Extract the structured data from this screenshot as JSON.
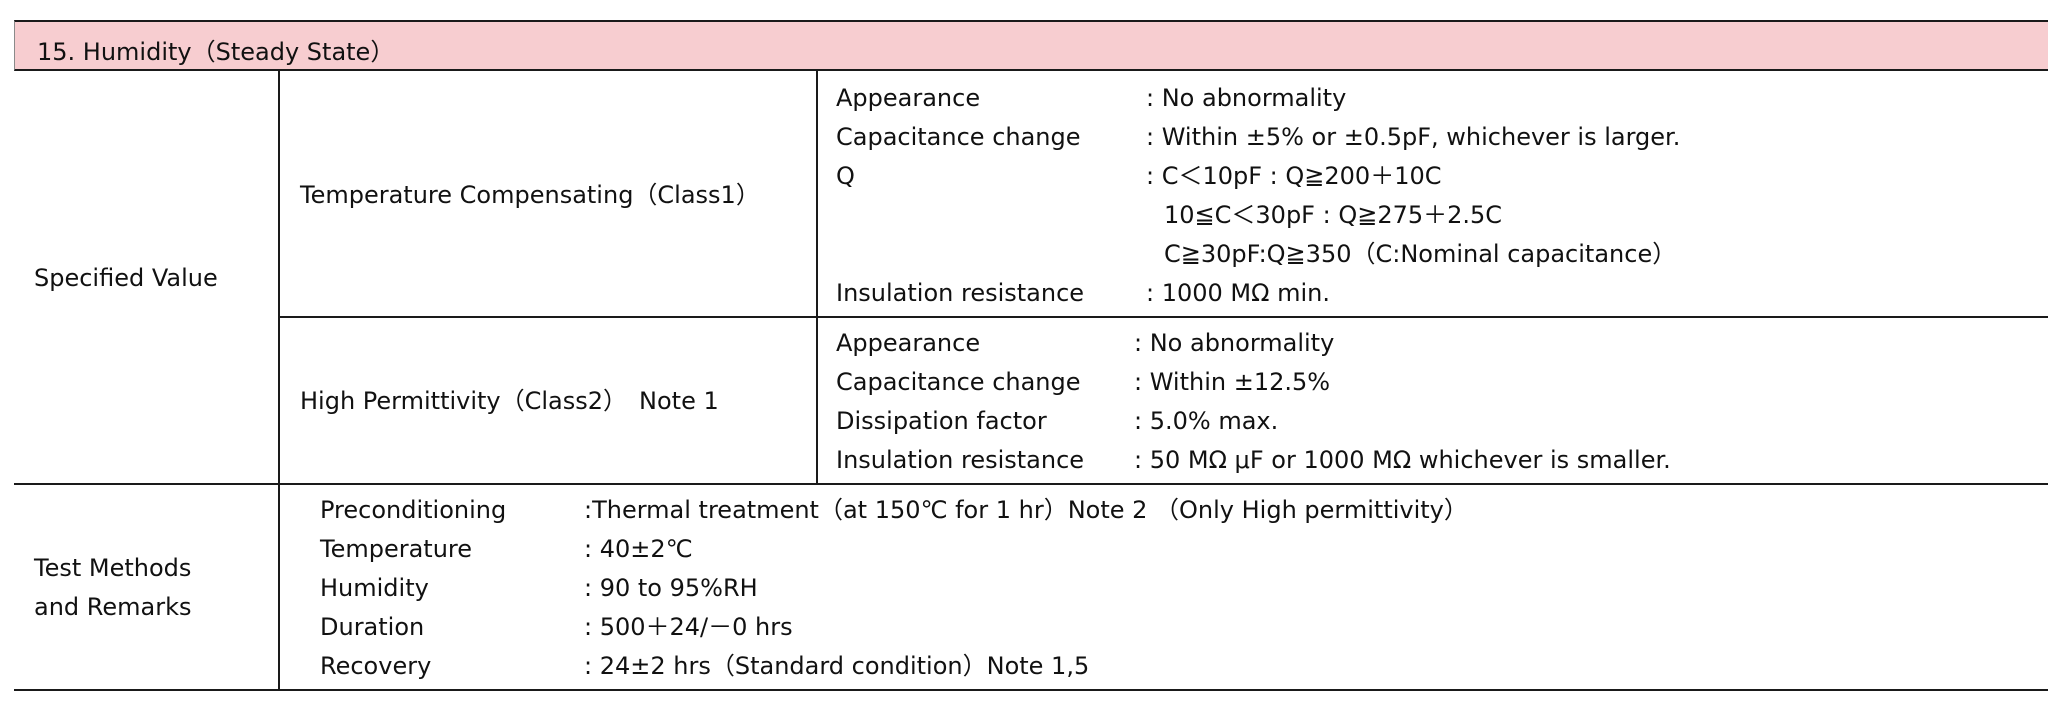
{
  "section_title": "15. Humidity（Steady State）",
  "specified_value": {
    "label": "Specified Value",
    "class1": {
      "label": "Temperature Compensating（Class1）",
      "rows": [
        {
          "key": "Appearance",
          "value": ": No abnormality"
        },
        {
          "key": "Capacitance change",
          "value": ": Within ±5% or ±0.5pF, whichever is larger."
        },
        {
          "key": "Q",
          "value": ": C＜10pF : Q≧200＋10C"
        },
        {
          "key": "",
          "value": "10≦C＜30pF : Q≧275＋2.5C"
        },
        {
          "key": "",
          "value": "C≧30pF:Q≧350（C:Nominal capacitance）"
        },
        {
          "key": "Insulation resistance",
          "value": ": 1000 MΩ  min."
        }
      ]
    },
    "class2": {
      "label": "High Permittivity（Class2）　Note 1",
      "rows": [
        {
          "key": "Appearance",
          "value": ": No abnormality"
        },
        {
          "key": "Capacitance change",
          "value": ": Within  ±12.5%"
        },
        {
          "key": "Dissipation factor",
          "value": ": 5.0% max."
        },
        {
          "key": "Insulation resistance",
          "value": ": 50 MΩ μF or 1000 MΩ  whichever is smaller."
        }
      ]
    }
  },
  "test_methods": {
    "label_line1": "Test Methods",
    "label_line2": "and Remarks",
    "rows": [
      {
        "key": "Preconditioning",
        "value": ":Thermal treatment（at 150℃ for 1 hr）Note 2  （Only High permittivity）"
      },
      {
        "key": "Temperature",
        "value": ": 40±2℃"
      },
      {
        "key": "Humidity",
        "value": ": 90 to 95%RH"
      },
      {
        "key": "Duration",
        "value": ": 500＋24/－0 hrs"
      },
      {
        "key": "Recovery",
        "value": ": 24±2 hrs（Standard condition）Note 1,5"
      }
    ]
  }
}
